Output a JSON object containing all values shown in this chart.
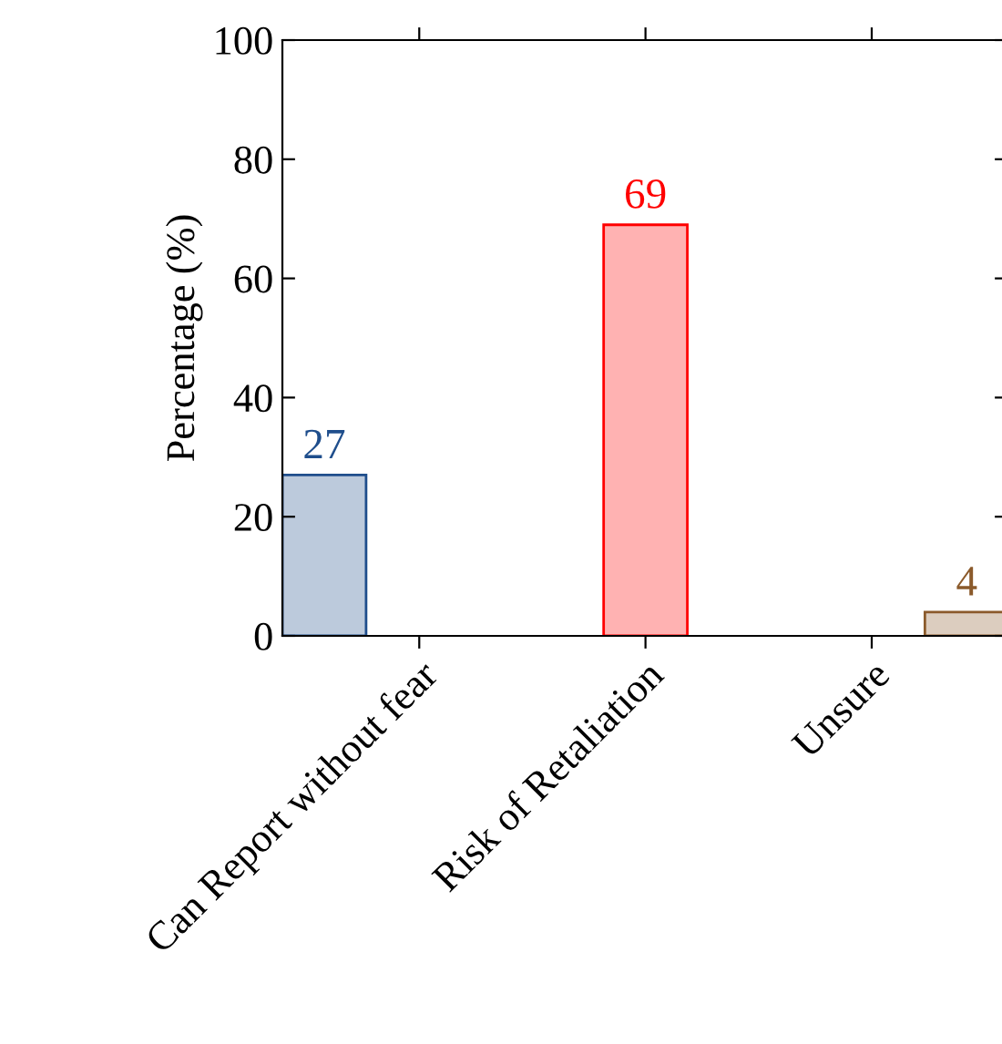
{
  "chart_data": {
    "type": "bar",
    "ylabel": "Percentage (%)",
    "categories": [
      "Can Report without fear",
      "Risk of Retaliation",
      "Unsure"
    ],
    "series": [
      {
        "color": "#1f4e8c",
        "values": [
          27,
          null,
          null
        ]
      },
      {
        "color": "#ff0000",
        "values": [
          null,
          69,
          null
        ]
      },
      {
        "color": "#8b5a2b",
        "values": [
          null,
          null,
          4
        ]
      }
    ],
    "ylim": [
      0,
      100
    ],
    "yticks": [
      0,
      20,
      40,
      60,
      80,
      100
    ],
    "data_labels": true,
    "grid": false,
    "legend": false
  }
}
